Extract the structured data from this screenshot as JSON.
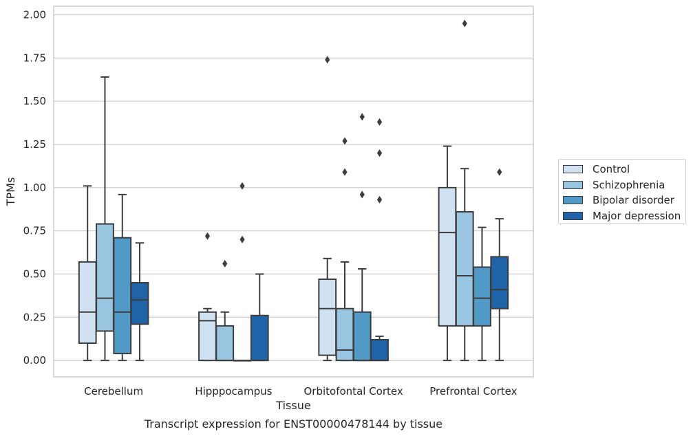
{
  "chart_data": {
    "type": "boxplot",
    "title": "Transcript expression for ENST00000478144 by tissue",
    "xlabel": "Tissue",
    "ylabel": "TPMs",
    "ylim": [
      -0.095,
      2.05
    ],
    "yticks": [
      "0.00",
      "0.25",
      "0.50",
      "0.75",
      "1.00",
      "1.25",
      "1.50",
      "1.75",
      "2.00"
    ],
    "categories": [
      "Cerebellum",
      "Hipppocampus",
      "Orbitofontal Cortex",
      "Prefrontal Cortex"
    ],
    "grid": "horizontal",
    "legend_position": "right",
    "series": [
      {
        "name": "Control",
        "color": "#d0e1f2",
        "boxes": [
          {
            "whisker_low": 0,
            "q1": 0.1,
            "median": 0.28,
            "q3": 0.57,
            "whisker_high": 1.01,
            "outliers": []
          },
          {
            "whisker_low": 0,
            "q1": 0,
            "median": 0.23,
            "q3": 0.28,
            "whisker_high": 0.3,
            "outliers": [
              0.72
            ]
          },
          {
            "whisker_low": 0,
            "q1": 0.03,
            "median": 0.3,
            "q3": 0.47,
            "whisker_high": 0.59,
            "outliers": [
              1.74
            ]
          },
          {
            "whisker_low": 0,
            "q1": 0.2,
            "median": 0.74,
            "q3": 1.0,
            "whisker_high": 1.24,
            "outliers": []
          }
        ]
      },
      {
        "name": "Schizophrenia",
        "color": "#9ac5e0",
        "boxes": [
          {
            "whisker_low": 0,
            "q1": 0.17,
            "median": 0.36,
            "q3": 0.79,
            "whisker_high": 1.64,
            "outliers": []
          },
          {
            "whisker_low": 0,
            "q1": 0,
            "median": 0,
            "q3": 0.2,
            "whisker_high": 0.28,
            "outliers": [
              0.56
            ]
          },
          {
            "whisker_low": 0,
            "q1": 0,
            "median": 0.06,
            "q3": 0.3,
            "whisker_high": 0.57,
            "outliers": [
              1.09,
              1.27
            ]
          },
          {
            "whisker_low": 0,
            "q1": 0.2,
            "median": 0.49,
            "q3": 0.86,
            "whisker_high": 1.11,
            "outliers": [
              1.95
            ]
          }
        ]
      },
      {
        "name": "Bipolar disorder",
        "color": "#5199c7",
        "boxes": [
          {
            "whisker_low": 0,
            "q1": 0.04,
            "median": 0.28,
            "q3": 0.71,
            "whisker_high": 0.96,
            "outliers": []
          },
          {
            "whisker_low": 0,
            "q1": 0,
            "median": 0,
            "q3": 0,
            "whisker_high": 0,
            "outliers": [
              0.7,
              1.01
            ]
          },
          {
            "whisker_low": 0,
            "q1": 0,
            "median": 0,
            "q3": 0.28,
            "whisker_high": 0.53,
            "outliers": [
              0.96,
              1.41
            ]
          },
          {
            "whisker_low": 0,
            "q1": 0.2,
            "median": 0.36,
            "q3": 0.54,
            "whisker_high": 0.77,
            "outliers": []
          }
        ]
      },
      {
        "name": "Major depression",
        "color": "#1f63a8",
        "boxes": [
          {
            "whisker_low": 0,
            "q1": 0.21,
            "median": 0.35,
            "q3": 0.45,
            "whisker_high": 0.68,
            "outliers": []
          },
          {
            "whisker_low": 0,
            "q1": 0,
            "median": 0,
            "q3": 0.26,
            "whisker_high": 0.5,
            "outliers": []
          },
          {
            "whisker_low": 0,
            "q1": 0,
            "median": 0,
            "q3": 0.12,
            "whisker_high": 0.14,
            "outliers": [
              0.93,
              1.2,
              1.38
            ]
          },
          {
            "whisker_low": 0,
            "q1": 0.3,
            "median": 0.41,
            "q3": 0.6,
            "whisker_high": 0.82,
            "outliers": [
              1.09
            ]
          }
        ]
      }
    ]
  }
}
